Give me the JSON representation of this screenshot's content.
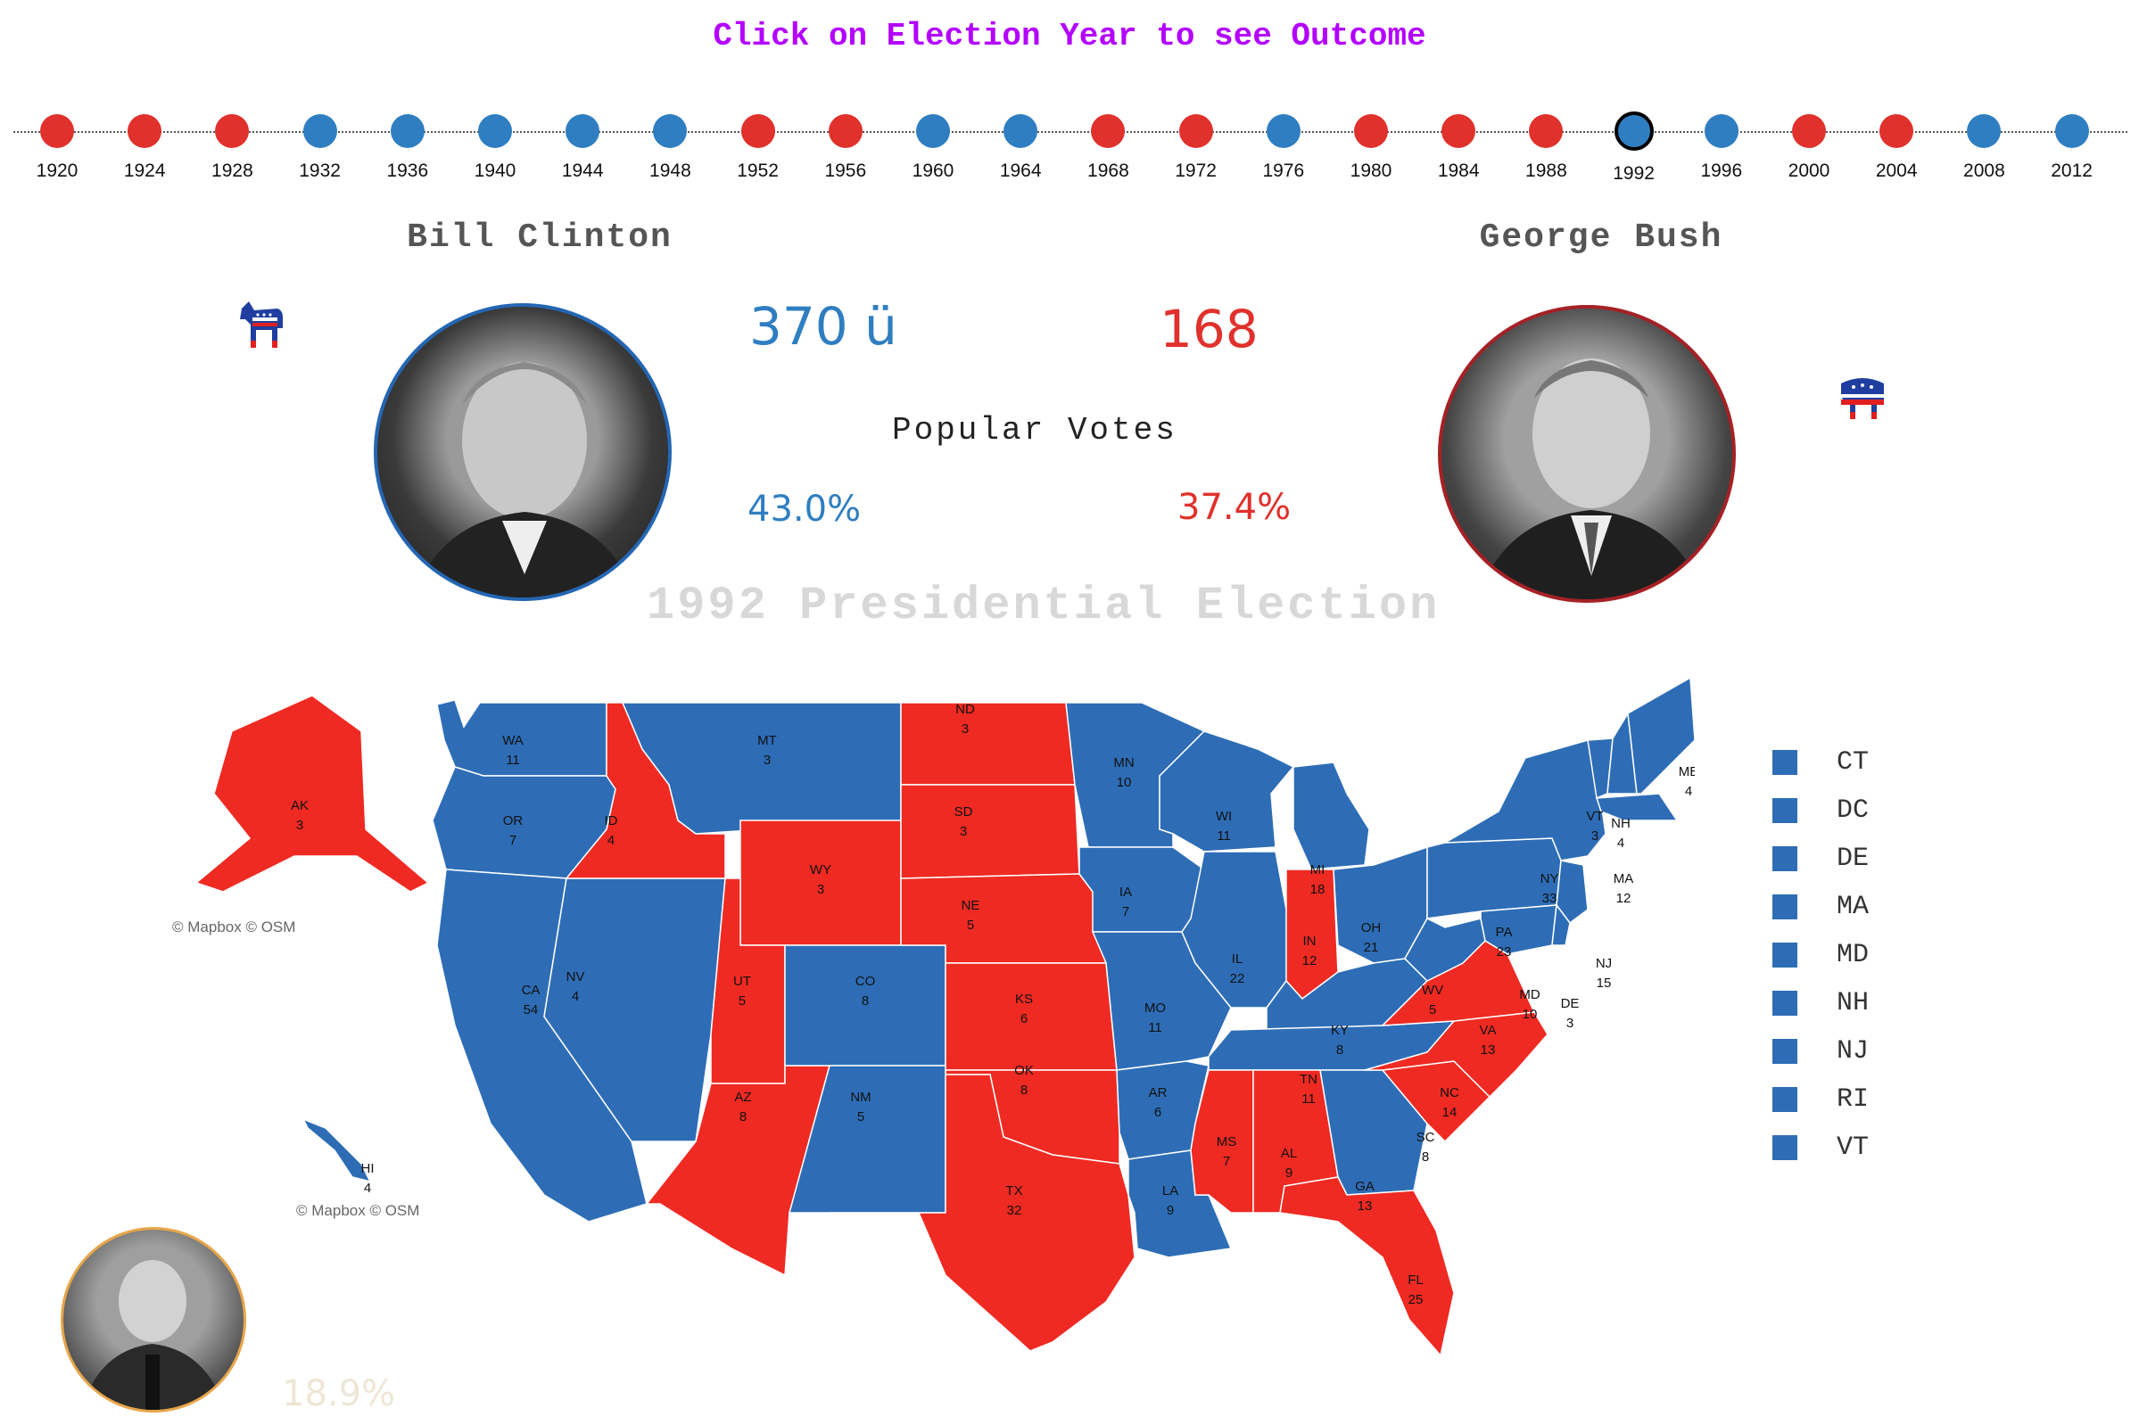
{
  "header": "Click on Election Year to see Outcome",
  "colors": {
    "dem": "#2e6db6",
    "rep": "#ef2a23",
    "dem_text": "#2f7ec1",
    "rep_text": "#e0312c",
    "third": "#e7a64a"
  },
  "years": [
    {
      "y": "1920",
      "p": "rep"
    },
    {
      "y": "1924",
      "p": "rep"
    },
    {
      "y": "1928",
      "p": "rep"
    },
    {
      "y": "1932",
      "p": "dem"
    },
    {
      "y": "1936",
      "p": "dem"
    },
    {
      "y": "1940",
      "p": "dem"
    },
    {
      "y": "1944",
      "p": "dem"
    },
    {
      "y": "1948",
      "p": "dem"
    },
    {
      "y": "1952",
      "p": "rep"
    },
    {
      "y": "1956",
      "p": "rep"
    },
    {
      "y": "1960",
      "p": "dem"
    },
    {
      "y": "1964",
      "p": "dem"
    },
    {
      "y": "1968",
      "p": "rep"
    },
    {
      "y": "1972",
      "p": "rep"
    },
    {
      "y": "1976",
      "p": "dem"
    },
    {
      "y": "1980",
      "p": "rep"
    },
    {
      "y": "1984",
      "p": "rep"
    },
    {
      "y": "1988",
      "p": "rep"
    },
    {
      "y": "1992",
      "p": "dem"
    },
    {
      "y": "1996",
      "p": "dem"
    },
    {
      "y": "2000",
      "p": "rep"
    },
    {
      "y": "2004",
      "p": "rep"
    },
    {
      "y": "2008",
      "p": "dem"
    },
    {
      "y": "2012",
      "p": "dem"
    }
  ],
  "selected_year": "1992",
  "dem": {
    "name": "Bill Clinton",
    "ev": "370 ü",
    "pct": "43.0%"
  },
  "rep": {
    "name": "George Bush",
    "ev": "168",
    "pct": "37.4%"
  },
  "popular_label": "Popular Votes",
  "third_pct": "18.9%",
  "map_title": "1992 Presidential Election",
  "attribution": "© Mapbox © OSM",
  "legend": [
    "CT",
    "DC",
    "DE",
    "MA",
    "MD",
    "NH",
    "NJ",
    "RI",
    "VT"
  ],
  "states": [
    {
      "a": "WA",
      "v": "11",
      "p": "dem"
    },
    {
      "a": "OR",
      "v": "7",
      "p": "dem"
    },
    {
      "a": "CA",
      "v": "54",
      "p": "dem"
    },
    {
      "a": "NV",
      "v": "4",
      "p": "dem"
    },
    {
      "a": "ID",
      "v": "4",
      "p": "rep"
    },
    {
      "a": "MT",
      "v": "3",
      "p": "dem"
    },
    {
      "a": "WY",
      "v": "3",
      "p": "rep"
    },
    {
      "a": "UT",
      "v": "5",
      "p": "rep"
    },
    {
      "a": "AZ",
      "v": "8",
      "p": "rep"
    },
    {
      "a": "CO",
      "v": "8",
      "p": "dem"
    },
    {
      "a": "NM",
      "v": "5",
      "p": "dem"
    },
    {
      "a": "ND",
      "v": "3",
      "p": "rep"
    },
    {
      "a": "SD",
      "v": "3",
      "p": "rep"
    },
    {
      "a": "NE",
      "v": "5",
      "p": "rep"
    },
    {
      "a": "KS",
      "v": "6",
      "p": "rep"
    },
    {
      "a": "OK",
      "v": "8",
      "p": "rep"
    },
    {
      "a": "TX",
      "v": "32",
      "p": "rep"
    },
    {
      "a": "MN",
      "v": "10",
      "p": "dem"
    },
    {
      "a": "IA",
      "v": "7",
      "p": "dem"
    },
    {
      "a": "MO",
      "v": "11",
      "p": "dem"
    },
    {
      "a": "AR",
      "v": "6",
      "p": "dem"
    },
    {
      "a": "LA",
      "v": "9",
      "p": "dem"
    },
    {
      "a": "WI",
      "v": "11",
      "p": "dem"
    },
    {
      "a": "IL",
      "v": "22",
      "p": "dem"
    },
    {
      "a": "MI",
      "v": "18",
      "p": "dem"
    },
    {
      "a": "IN",
      "v": "12",
      "p": "rep"
    },
    {
      "a": "OH",
      "v": "21",
      "p": "dem"
    },
    {
      "a": "KY",
      "v": "8",
      "p": "dem"
    },
    {
      "a": "TN",
      "v": "11",
      "p": "dem"
    },
    {
      "a": "MS",
      "v": "7",
      "p": "rep"
    },
    {
      "a": "AL",
      "v": "9",
      "p": "rep"
    },
    {
      "a": "GA",
      "v": "13",
      "p": "dem"
    },
    {
      "a": "FL",
      "v": "25",
      "p": "rep"
    },
    {
      "a": "SC",
      "v": "8",
      "p": "rep"
    },
    {
      "a": "NC",
      "v": "14",
      "p": "rep"
    },
    {
      "a": "VA",
      "v": "13",
      "p": "rep"
    },
    {
      "a": "WV",
      "v": "5",
      "p": "dem"
    },
    {
      "a": "PA",
      "v": "23",
      "p": "dem"
    },
    {
      "a": "NY",
      "v": "33",
      "p": "dem"
    },
    {
      "a": "VT",
      "v": "3",
      "p": "dem"
    },
    {
      "a": "NH",
      "v": "4",
      "p": "dem"
    },
    {
      "a": "ME",
      "v": "4",
      "p": "dem"
    },
    {
      "a": "MA",
      "v": "12",
      "p": "dem"
    },
    {
      "a": "NJ",
      "v": "15",
      "p": "dem"
    },
    {
      "a": "MD",
      "v": "10",
      "p": "dem"
    },
    {
      "a": "DE",
      "v": "3",
      "p": "dem"
    },
    {
      "a": "AK",
      "v": "3",
      "p": "rep"
    },
    {
      "a": "HI",
      "v": "4",
      "p": "dem"
    }
  ]
}
